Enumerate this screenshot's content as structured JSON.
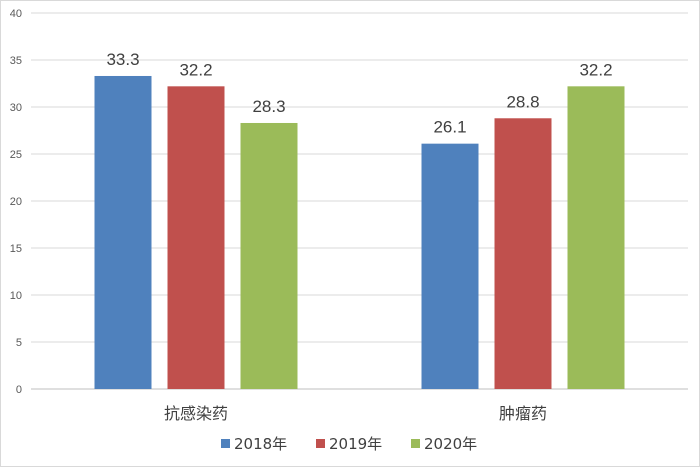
{
  "chart_data": {
    "type": "bar",
    "categories": [
      "抗感染药",
      "肿瘤药"
    ],
    "series": [
      {
        "name": "2018年",
        "values": [
          33.3,
          26.1
        ],
        "color": "#4f81bd"
      },
      {
        "name": "2019年",
        "values": [
          32.2,
          28.8
        ],
        "color": "#c0504d"
      },
      {
        "name": "2020年",
        "values": [
          28.3,
          32.2
        ],
        "color": "#9bbb59"
      }
    ],
    "ylim": [
      0,
      40
    ],
    "yticks": [
      0,
      5,
      10,
      15,
      20,
      25,
      30,
      35,
      40
    ],
    "grid": true,
    "legend_position": "bottom",
    "title": "",
    "xlabel": "",
    "ylabel": ""
  }
}
